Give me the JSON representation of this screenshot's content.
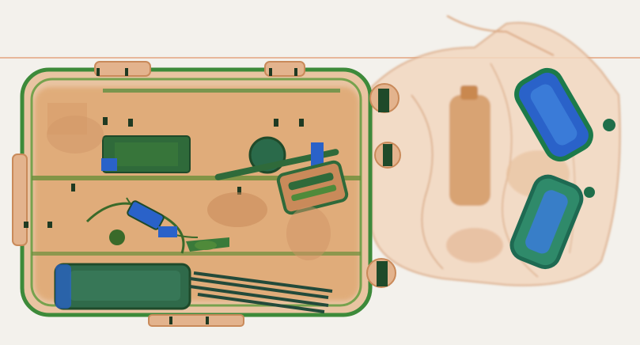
{
  "image": {
    "kind": "x-ray-baggage-scan",
    "background_color": "#f3f1ec",
    "colors": {
      "organic": "#d99a5a",
      "organic_dark": "#b86a2e",
      "inorganic": "#2f8a3a",
      "metal": "#1f6e4a",
      "dense": "#2a62c9",
      "scan_line": "#e7b79a"
    }
  }
}
